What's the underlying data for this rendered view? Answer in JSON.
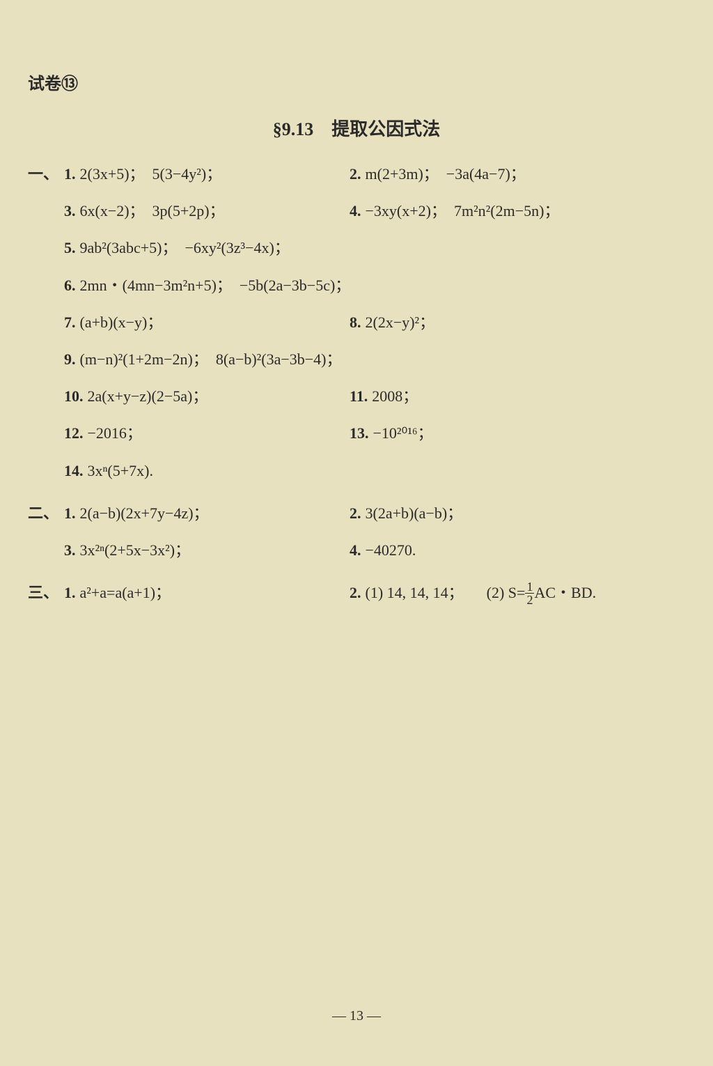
{
  "header_label": "试卷⑬",
  "section_title": "§9.13　提取公因式法",
  "sections": {
    "one": {
      "label": "一、",
      "rows": [
        {
          "left": {
            "num": "1.",
            "expr": "2(3x+5)；　5(3−4y²)；"
          },
          "right": {
            "num": "2.",
            "expr": "m(2+3m)；　−3a(4a−7)；"
          }
        },
        {
          "left": {
            "num": "3.",
            "expr": "6x(x−2)；　3p(5+2p)；"
          },
          "right": {
            "num": "4.",
            "expr": "−3xy(x+2)；　7m²n²(2m−5n)；"
          }
        },
        {
          "full": {
            "num": "5.",
            "expr": "9ab²(3abc+5)；　−6xy²(3z³−4x)；"
          }
        },
        {
          "full": {
            "num": "6.",
            "expr": "2mn・(4mn−3m²n+5)；　−5b(2a−3b−5c)；"
          }
        },
        {
          "left": {
            "num": "7.",
            "expr": "(a+b)(x−y)；"
          },
          "right": {
            "num": "8.",
            "expr": "2(2x−y)²；"
          }
        },
        {
          "full": {
            "num": "9.",
            "expr": "(m−n)²(1+2m−2n)；　8(a−b)²(3a−3b−4)；"
          }
        },
        {
          "left": {
            "num": "10.",
            "expr": "2a(x+y−z)(2−5a)；"
          },
          "right": {
            "num": "11.",
            "expr": "2008；"
          }
        },
        {
          "left": {
            "num": "12.",
            "expr": "−2016；"
          },
          "right": {
            "num": "13.",
            "expr": "−10²⁰¹⁶；"
          }
        },
        {
          "full": {
            "num": "14.",
            "expr": "3xⁿ(5+7x)."
          }
        }
      ]
    },
    "two": {
      "label": "二、",
      "rows": [
        {
          "left": {
            "num": "1.",
            "expr": "2(a−b)(2x+7y−4z)；"
          },
          "right": {
            "num": "2.",
            "expr": "3(2a+b)(a−b)；"
          }
        },
        {
          "left": {
            "num": "3.",
            "expr": "3x²ⁿ(2+5x−3x²)；"
          },
          "right": {
            "num": "4.",
            "expr": "−40270."
          }
        }
      ]
    },
    "three": {
      "label": "三、",
      "rows": [
        {
          "left": {
            "num": "1.",
            "expr": "a²+a=a(a+1)；"
          },
          "right": {
            "num": "2.",
            "expr_prefix": "(1) 14, 14, 14；　　(2) S=",
            "frac_num": "1",
            "frac_den": "2",
            "expr_suffix": "AC・BD."
          }
        }
      ]
    }
  },
  "page_number": "— 13 —",
  "colors": {
    "background": "#e8e1c0",
    "text": "#2a2a2a"
  },
  "typography": {
    "body_fontsize": 22,
    "title_fontsize": 26,
    "header_fontsize": 24,
    "font_family": "SimSun"
  }
}
